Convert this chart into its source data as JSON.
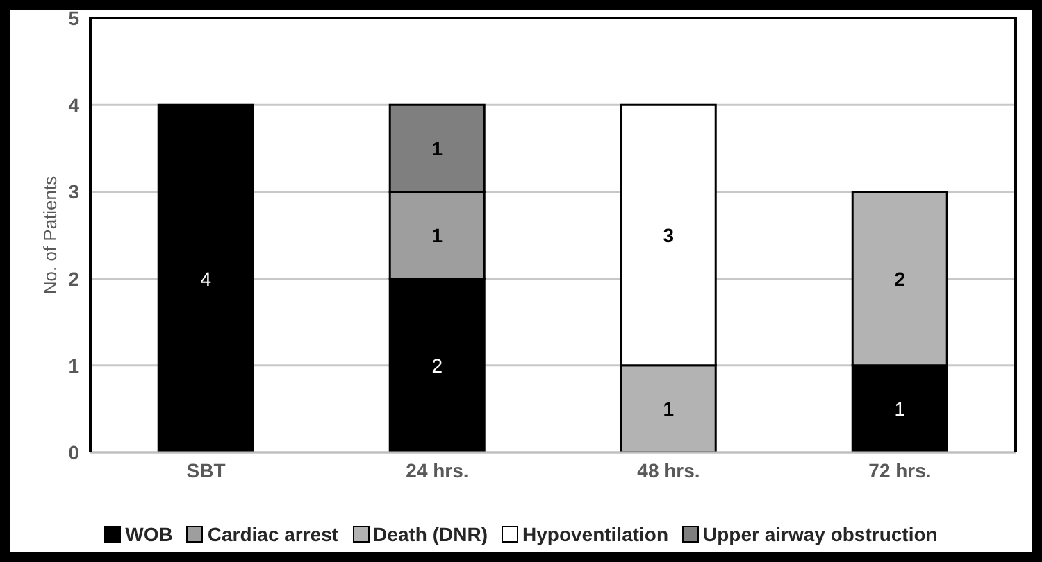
{
  "chart_data": {
    "type": "bar",
    "stacked": true,
    "categories": [
      "SBT",
      "24 hrs.",
      "48 hrs.",
      "72 hrs."
    ],
    "ylabel": "No. of Patients",
    "ylim": [
      0,
      5
    ],
    "yticks": [
      0,
      1,
      2,
      3,
      4,
      5
    ],
    "grid": "y",
    "legend": "bottom",
    "data_labels": true,
    "series": [
      {
        "name": "WOB",
        "color": "#000000",
        "values": [
          4,
          2,
          null,
          1
        ]
      },
      {
        "name": "Cardiac arrest",
        "color": "#9e9e9e",
        "values": [
          null,
          1,
          null,
          null
        ]
      },
      {
        "name": "Death (DNR)",
        "color": "#b3b3b3",
        "values": [
          null,
          null,
          1,
          2
        ]
      },
      {
        "name": "Hypoventilation",
        "color": "#ffffff",
        "values": [
          null,
          null,
          3,
          null
        ]
      },
      {
        "name": "Upper airway obstruction",
        "color": "#7f7f7f",
        "values": [
          null,
          1,
          null,
          null
        ]
      }
    ]
  }
}
